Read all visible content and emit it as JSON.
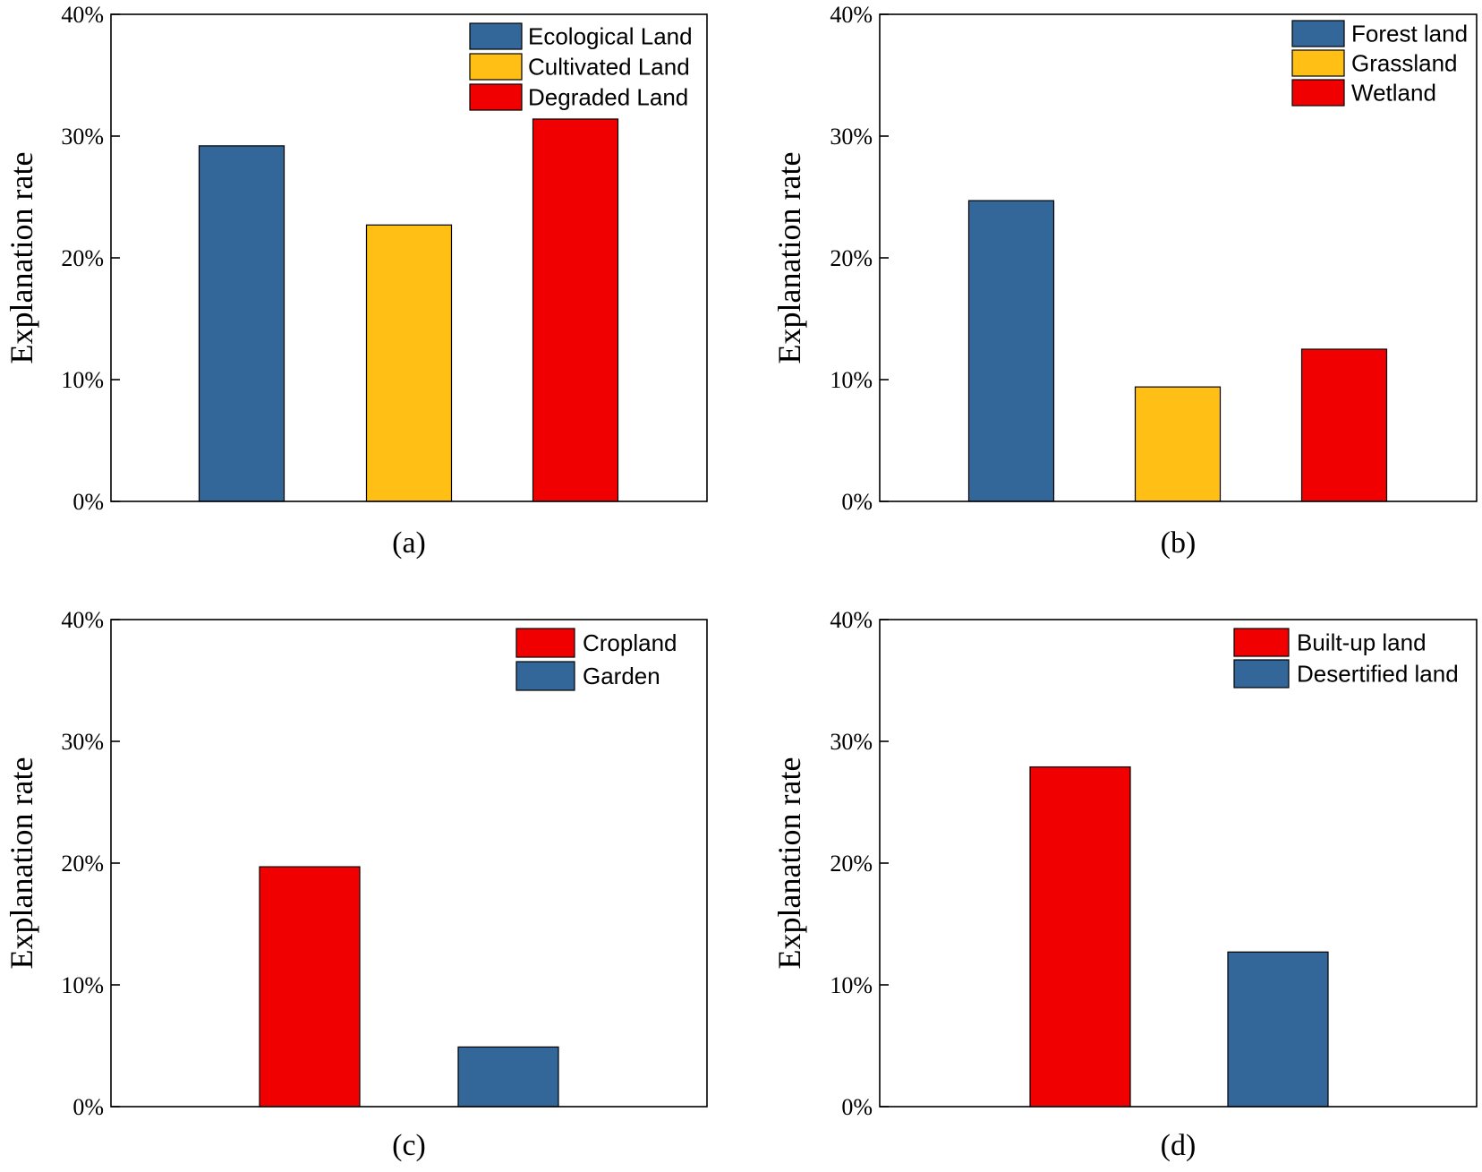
{
  "chart_data": [
    {
      "type": "bar",
      "panel_label": "(a)",
      "ylabel": "Explanation rate",
      "ylim": [
        0,
        40
      ],
      "yticks": [
        "0%",
        "10%",
        "20%",
        "30%",
        "40%"
      ],
      "legend_position": "top-right",
      "series": [
        {
          "name": "Ecological Land",
          "value": 29.2,
          "color": "#336699"
        },
        {
          "name": "Cultivated Land",
          "value": 22.7,
          "color": "#ffbf14"
        },
        {
          "name": "Degraded Land",
          "value": 31.4,
          "color": "#f00000"
        }
      ]
    },
    {
      "type": "bar",
      "panel_label": "(b)",
      "ylabel": "Explanation rate",
      "ylim": [
        0,
        40
      ],
      "yticks": [
        "0%",
        "10%",
        "20%",
        "30%",
        "40%"
      ],
      "legend_position": "top-right",
      "series": [
        {
          "name": "Forest land",
          "value": 24.7,
          "color": "#336699"
        },
        {
          "name": "Grassland",
          "value": 9.4,
          "color": "#ffbf14"
        },
        {
          "name": "Wetland",
          "value": 12.5,
          "color": "#f00000"
        }
      ]
    },
    {
      "type": "bar",
      "panel_label": "(c)",
      "ylabel": "Explanation rate",
      "ylim": [
        0,
        40
      ],
      "yticks": [
        "0%",
        "10%",
        "20%",
        "30%",
        "40%"
      ],
      "legend_position": "top-right",
      "series": [
        {
          "name": "Cropland",
          "value": 19.7,
          "color": "#f00000"
        },
        {
          "name": "Garden",
          "value": 4.9,
          "color": "#336699"
        }
      ]
    },
    {
      "type": "bar",
      "panel_label": "(d)",
      "ylabel": "Explanation rate",
      "ylim": [
        0,
        40
      ],
      "yticks": [
        "0%",
        "10%",
        "20%",
        "30%",
        "40%"
      ],
      "legend_position": "top-right",
      "series": [
        {
          "name": "Built-up land",
          "value": 27.9,
          "color": "#f00000"
        },
        {
          "name": "Desertified land",
          "value": 12.7,
          "color": "#336699"
        }
      ]
    }
  ]
}
